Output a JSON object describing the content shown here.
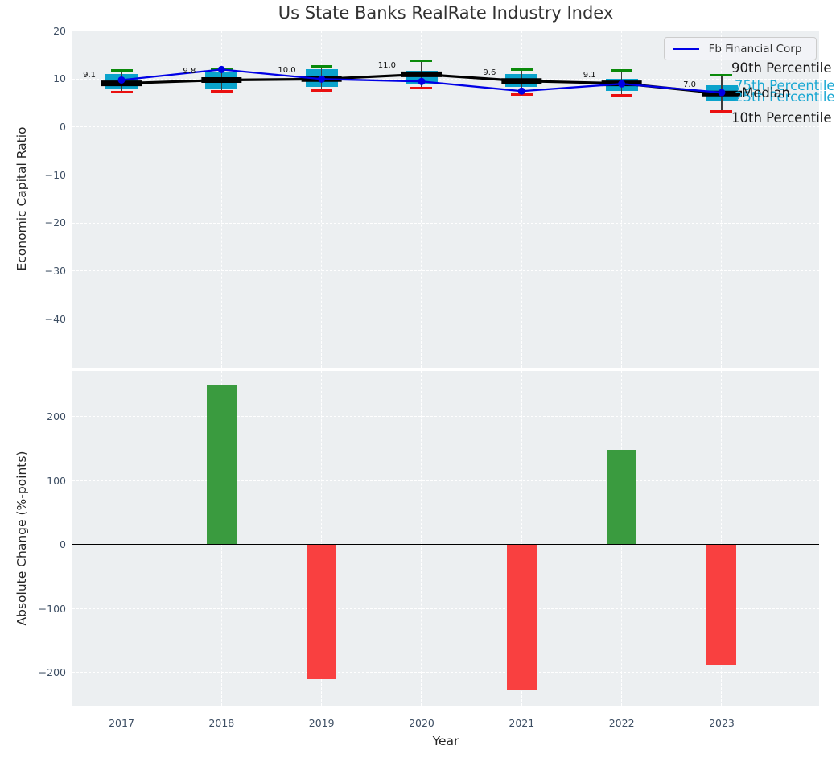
{
  "title": "Us State Banks RealRate Industry Index",
  "legend": {
    "label": "Fb Financial Corp"
  },
  "right_labels": {
    "p90": "90th Percentile",
    "p75": "75th Percentile",
    "median": "Median",
    "p25": "25th Percentile",
    "p10": "10th Percentile"
  },
  "colors": {
    "box_fill": "#0aa3cc",
    "p90_cap": "#0a8a0a",
    "p10_cap": "#ea1010",
    "median_line": "#000000",
    "company_line": "#0000e6",
    "bar_positive": "#3a9b3f",
    "bar_negative": "#f94040",
    "plot_background": "#eceff1",
    "gridline": "#ffffff",
    "tick_text": "#3d4e63",
    "cyan_label_text": "#18a7d2"
  },
  "chart_data": [
    {
      "type": "boxplot+line",
      "title": "Us State Banks RealRate Industry Index",
      "ylabel": "Economic Capital Ratio",
      "x_categories": [
        "2017",
        "2018",
        "2019",
        "2020",
        "2021",
        "2022",
        "2023"
      ],
      "ytick_labels": [
        "20",
        "10",
        "0",
        "−10",
        "−20",
        "−30",
        "−40"
      ],
      "ylim": [
        -50,
        20.7
      ],
      "grid": true,
      "legend_position": "upper right",
      "series": [
        {
          "name": "90th Percentile",
          "values": [
            11.8,
            12.2,
            12.7,
            13.8,
            12.0,
            11.8,
            10.8
          ]
        },
        {
          "name": "75th Percentile",
          "values": [
            11.0,
            11.5,
            12.0,
            11.8,
            11.0,
            10.0,
            8.7
          ]
        },
        {
          "name": "Median",
          "values": [
            9.1,
            9.8,
            10.0,
            11.0,
            9.6,
            9.1,
            7.0
          ],
          "point_labels": [
            "9.1",
            "9.8",
            "10.0",
            "11.0",
            "9.6",
            "9.1",
            "7.0"
          ]
        },
        {
          "name": "25th Percentile",
          "values": [
            8.0,
            8.0,
            8.3,
            8.8,
            8.3,
            7.5,
            5.5
          ]
        },
        {
          "name": "10th Percentile",
          "values": [
            7.3,
            7.4,
            7.6,
            8.2,
            6.8,
            6.7,
            3.2
          ]
        },
        {
          "name": "Fb Financial Corp",
          "values": [
            9.8,
            12.0,
            10.0,
            9.5,
            7.5,
            9.0,
            7.2
          ]
        }
      ]
    },
    {
      "type": "bar",
      "ylabel": "Absolute Change (%-points)",
      "xlabel": "Year",
      "categories": [
        "2017",
        "2018",
        "2019",
        "2020",
        "2021",
        "2022",
        "2023"
      ],
      "values": [
        0,
        250,
        -210,
        0,
        -228,
        148,
        -189
      ],
      "ytick_labels": [
        "200",
        "100",
        "0",
        "−100",
        "−200"
      ],
      "ylim": [
        -252,
        271
      ],
      "grid": true
    }
  ]
}
